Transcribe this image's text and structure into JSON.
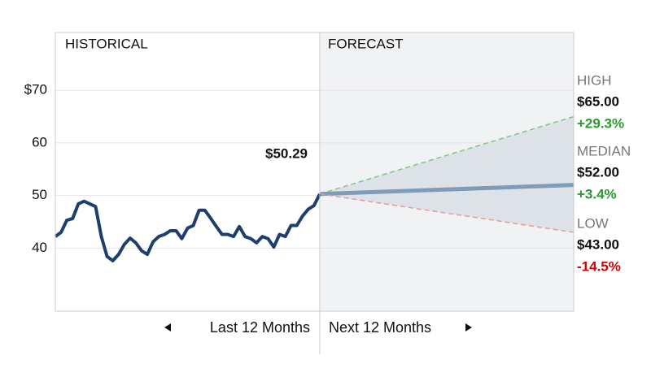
{
  "chart_data": {
    "type": "forecast",
    "panel_labels": [
      "HISTORICAL",
      "FORECAST"
    ],
    "period_labels": [
      "Last 12 Months",
      "Next 12 Months"
    ],
    "ylim": [
      28,
      81
    ],
    "yticks": [
      {
        "value": 70,
        "label": "$70"
      },
      60,
      50,
      40
    ],
    "grid": true,
    "historical": {
      "color": "#1c3f6e",
      "values": [
        42.2,
        43.0,
        45.3,
        45.6,
        48.4,
        48.9,
        48.4,
        47.9,
        42.2,
        38.4,
        37.6,
        38.8,
        40.7,
        41.9,
        41.0,
        39.5,
        38.8,
        41.2,
        42.2,
        42.6,
        43.3,
        43.3,
        41.8,
        43.8,
        44.3,
        47.2,
        47.2,
        45.7,
        44.1,
        42.6,
        42.6,
        42.2,
        44.1,
        42.2,
        41.8,
        41.0,
        42.2,
        41.8,
        40.2,
        42.6,
        42.2,
        44.3,
        44.3,
        46.1,
        47.4,
        48.1,
        50.29
      ]
    },
    "current": {
      "value": 50.29,
      "label": "$50.29"
    },
    "forecast": [
      {
        "name": "HIGH",
        "value": 65,
        "value_label": "$65.00",
        "change": 29.3,
        "change_label": "+29.3%",
        "color": "#7dc87d",
        "change_color": "#2a9a2a"
      },
      {
        "name": "MEDIAN",
        "value": 52,
        "value_label": "$52.00",
        "change": 3.4,
        "change_label": "+3.4%",
        "color": "#7f9bb8",
        "change_color": "#2a9a2a"
      },
      {
        "name": "LOW",
        "value": 43,
        "value_label": "$43.00",
        "change": -14.5,
        "change_label": "-14.5%",
        "color": "#e89a9a",
        "change_color": "#cc0000"
      }
    ],
    "fan_color": "#dde2e9"
  }
}
